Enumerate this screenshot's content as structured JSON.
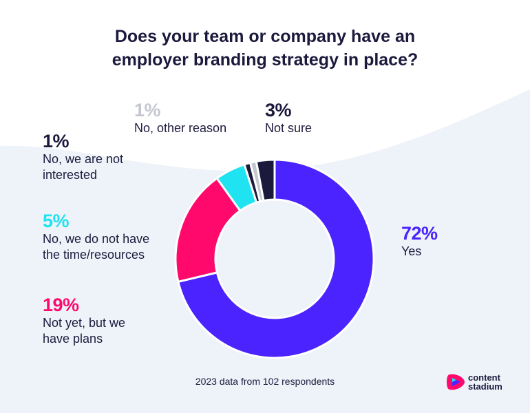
{
  "title": {
    "line1": "Does your team or company have an",
    "line2": "employer branding strategy in place?"
  },
  "chart_data": {
    "type": "pie",
    "title": "Does your team or company have an employer branding strategy in place?",
    "donut": true,
    "slices": [
      {
        "label": "Yes",
        "pct_label": "72%",
        "value": 72,
        "color": "#4b23ff"
      },
      {
        "label": "Not yet, but we have plans",
        "pct_label": "19%",
        "value": 19,
        "color": "#ff0a6c"
      },
      {
        "label": "No, we do not have the time/resources",
        "pct_label": "5%",
        "value": 5,
        "color": "#1fe3f0"
      },
      {
        "label": "No, we are not interested",
        "pct_label": "1%",
        "value": 1,
        "color": "#1b1a3d"
      },
      {
        "label": "No, other reason",
        "pct_label": "1%",
        "value": 1,
        "color": "#c4c7d0"
      },
      {
        "label": "Not sure",
        "pct_label": "3%",
        "value": 3,
        "color": "#1b1a3d"
      }
    ]
  },
  "labels": {
    "yes": {
      "pct": "72%",
      "text": "Yes"
    },
    "plans": {
      "pct": "19%",
      "text": "Not yet, but we\nhave plans"
    },
    "resources": {
      "pct": "5%",
      "text": "No, we do not have\nthe time/resources"
    },
    "not_interested": {
      "pct": "1%",
      "text": "No, we are not\ninterested"
    },
    "other": {
      "pct": "1%",
      "text": "No, other reason"
    },
    "not_sure": {
      "pct": "3%",
      "text": "Not sure"
    }
  },
  "footnote": "2023 data from 102 respondents",
  "logo": {
    "line1": "content",
    "line2": "stadium"
  },
  "colors": {
    "text": "#1b1a3d",
    "background_blob": "#eef3f9"
  }
}
